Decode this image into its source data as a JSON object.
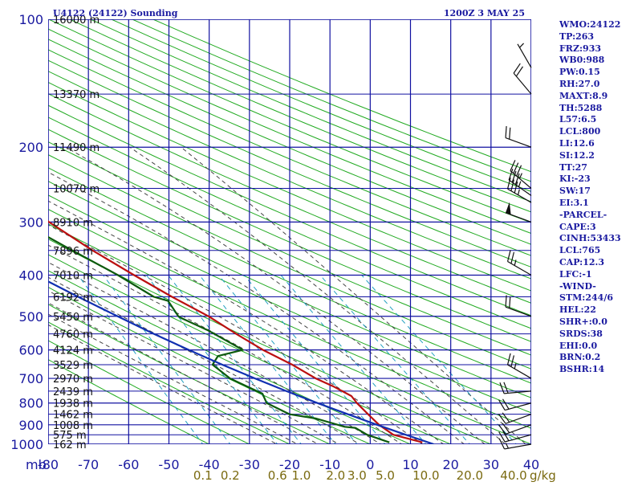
{
  "title": "U4122 (24122) Sounding",
  "time": "1200Z  3 MAY 25",
  "colors": {
    "grid": "#1010a0",
    "dry_adiabat": "#22aa22",
    "moist_adiabat": "#444444",
    "mixing_ratio": "#22a0c0",
    "temperature": "#bb1010",
    "dewpoint": "#0c5a0c",
    "parcel": "#1030b0",
    "wind": "#111111",
    "index_text": "#1a1aa0",
    "w_label": "#7a6a10"
  },
  "axis_unit_label": "mb",
  "chart_data": {
    "type": "line",
    "x_axis": {
      "label": "",
      "range": [
        -80,
        40
      ],
      "ticks": [
        -80,
        -70,
        -60,
        -50,
        -40,
        -30,
        -20,
        -10,
        0,
        10,
        20,
        30,
        40
      ]
    },
    "y_axis": {
      "label": "mb",
      "scale": "log",
      "range": [
        1000,
        100
      ],
      "ticks": [
        100,
        200,
        300,
        400,
        500,
        600,
        700,
        800,
        900,
        1000
      ]
    },
    "heights": [
      {
        "p": 1000,
        "label": "162 m"
      },
      {
        "p": 950,
        "label": "575 m"
      },
      {
        "p": 900,
        "label": "1008 m"
      },
      {
        "p": 850,
        "label": "1462 m"
      },
      {
        "p": 800,
        "label": "1938 m"
      },
      {
        "p": 750,
        "label": "2439 m"
      },
      {
        "p": 700,
        "label": "2970 m"
      },
      {
        "p": 650,
        "label": "3529 m"
      },
      {
        "p": 600,
        "label": "4124 m"
      },
      {
        "p": 550,
        "label": "4760 m"
      },
      {
        "p": 500,
        "label": "5450 m"
      },
      {
        "p": 450,
        "label": "6192 m"
      },
      {
        "p": 400,
        "label": "7010 m"
      },
      {
        "p": 350,
        "label": "7896 m"
      },
      {
        "p": 300,
        "label": "8910 m"
      },
      {
        "p": 250,
        "label": "10070 m"
      },
      {
        "p": 200,
        "label": "11490 m"
      },
      {
        "p": 150,
        "label": "13370 m"
      },
      {
        "p": 100,
        "label": "16000 m"
      }
    ],
    "mixing_ratio_labels": [
      "0.1",
      "0.2",
      "0.6",
      "1.0",
      "2.0",
      "3.0",
      "5.0",
      "10.0",
      "20.0",
      "40.0"
    ],
    "mixing_ratio_unit": "g/kg",
    "mixing_ratio_values": [
      0.1,
      0.2,
      0.6,
      1.0,
      2.0,
      3.0,
      5.0,
      10.0,
      20.0,
      40.0
    ],
    "series": [
      {
        "key": "temperature",
        "points": [
          [
            990,
            13.2
          ],
          [
            950,
            7.0
          ],
          [
            900,
            4.8
          ],
          [
            850,
            3.5
          ],
          [
            800,
            2.2
          ],
          [
            770,
            1.8
          ],
          [
            730,
            -1.5
          ],
          [
            700,
            -4.7
          ],
          [
            650,
            -8.7
          ],
          [
            600,
            -14.0
          ],
          [
            550,
            -18.5
          ],
          [
            500,
            -23.0
          ],
          [
            450,
            -29.5
          ],
          [
            400,
            -36.0
          ],
          [
            350,
            -43.0
          ],
          [
            300,
            -50.0
          ],
          [
            250,
            -57.4
          ],
          [
            225,
            -57.0
          ],
          [
            200,
            -53.0
          ],
          [
            180,
            -51.0
          ],
          [
            160,
            -50.6
          ],
          [
            100,
            -50.7
          ]
        ]
      },
      {
        "key": "dewpoint",
        "points": [
          [
            990,
            5.0
          ],
          [
            950,
            0.5
          ],
          [
            915,
            -1.5
          ],
          [
            910,
            -4.0
          ],
          [
            870,
            -10.0
          ],
          [
            850,
            -16.0
          ],
          [
            800,
            -20.2
          ],
          [
            760,
            -20.0
          ],
          [
            720,
            -24.0
          ],
          [
            700,
            -26.0
          ],
          [
            650,
            -28.5
          ],
          [
            620,
            -26.0
          ],
          [
            600,
            -19.0
          ],
          [
            540,
            -25.0
          ],
          [
            505,
            -30.0
          ],
          [
            500,
            -30.5
          ],
          [
            460,
            -31.0
          ],
          [
            450,
            -34.0
          ],
          [
            400,
            -40.0
          ],
          [
            350,
            -48.0
          ],
          [
            300,
            -57.0
          ],
          [
            250,
            -65.0
          ],
          [
            225,
            -65.0
          ],
          [
            200,
            -64.0
          ],
          [
            170,
            -65.0
          ],
          [
            150,
            -67.5
          ],
          [
            100,
            -74.0
          ]
        ]
      },
      {
        "key": "parcel",
        "points": [
          [
            1000,
            15.8
          ],
          [
            950,
            10.1
          ],
          [
            900,
            4.3
          ],
          [
            850,
            -1.5
          ],
          [
            800,
            -7.6
          ],
          [
            750,
            -13.7
          ],
          [
            700,
            -19.8
          ],
          [
            650,
            -26.1
          ],
          [
            600,
            -32.4
          ],
          [
            550,
            -38.9
          ],
          [
            500,
            -45.6
          ],
          [
            450,
            -52.8
          ],
          [
            400,
            -60.4
          ],
          [
            350,
            -68.7
          ],
          [
            300,
            -77.6
          ],
          [
            285,
            -80.0
          ]
        ]
      }
    ],
    "wind_barbs": [
      {
        "p": 1000,
        "dir": 260,
        "spd": 15
      },
      {
        "p": 950,
        "dir": 255,
        "spd": 20
      },
      {
        "p": 900,
        "dir": 250,
        "spd": 20
      },
      {
        "p": 850,
        "dir": 250,
        "spd": 20
      },
      {
        "p": 800,
        "dir": 255,
        "spd": 20
      },
      {
        "p": 750,
        "dir": 265,
        "spd": 20
      },
      {
        "p": 700,
        "dir": 300,
        "spd": 25
      },
      {
        "p": 500,
        "dir": 290,
        "spd": 20
      },
      {
        "p": 400,
        "dir": 300,
        "spd": 25
      },
      {
        "p": 300,
        "dir": 290,
        "spd": 50
      },
      {
        "p": 270,
        "dir": 300,
        "spd": 35
      },
      {
        "p": 260,
        "dir": 305,
        "spd": 35
      },
      {
        "p": 250,
        "dir": 310,
        "spd": 35
      },
      {
        "p": 200,
        "dir": 290,
        "spd": 20
      },
      {
        "p": 150,
        "dir": 320,
        "spd": 20
      },
      {
        "p": 130,
        "dir": 330,
        "spd": 5
      }
    ]
  },
  "indices": [
    "WMO:24122",
    "TP:263",
    "FRZ:933",
    "WB0:988",
    "PW:0.15",
    "RH:27.0",
    "MAXT:8.9",
    "TH:5288",
    "L57:6.5",
    "LCL:800",
    "LI:12.6",
    "SI:12.2",
    "TT:27",
    "KI:-23",
    "SW:17",
    "EI:3.1",
    "-PARCEL-",
    "CAPE:3",
    "CINH:53433",
    "LCL:765",
    "CAP:12.3",
    "LFC:-1",
    "-WIND-",
    "STM:244/6",
    "HEL:22",
    "SHR+:0.0",
    "SRDS:38",
    "EHI:0.0",
    "BRN:0.2",
    "BSHR:14"
  ]
}
